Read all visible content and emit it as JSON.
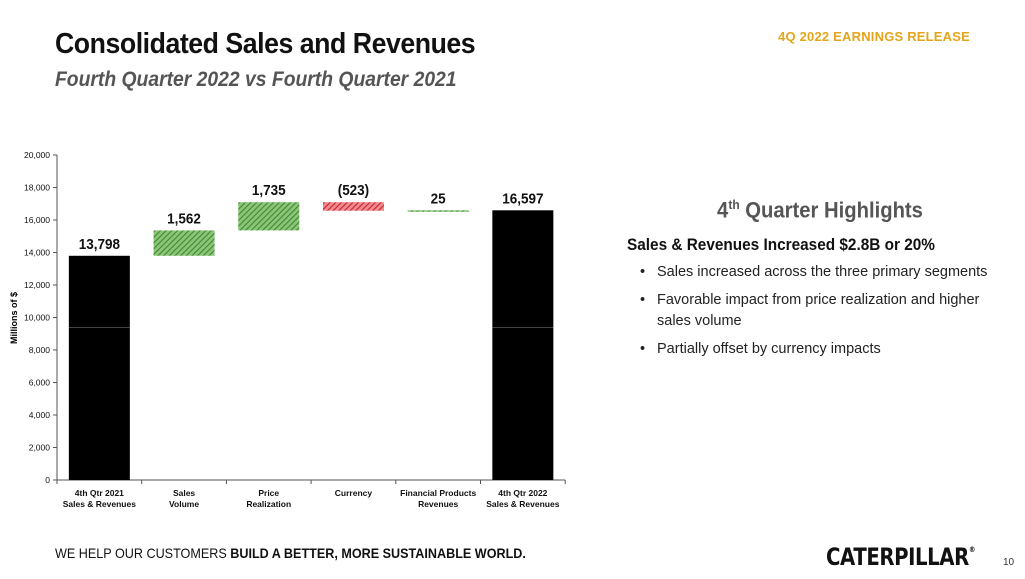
{
  "header": {
    "release": "4Q 2022 EARNINGS RELEASE",
    "title": "Consolidated Sales and Revenues",
    "subtitle": "Fourth Quarter 2022 vs Fourth Quarter 2021"
  },
  "chart_data": {
    "type": "bar",
    "subtype": "waterfall",
    "title": "",
    "xlabel": "",
    "ylabel": "Millions of $",
    "ylim": [
      0,
      20000
    ],
    "yticks": [
      0,
      2000,
      4000,
      6000,
      8000,
      10000,
      12000,
      14000,
      16000,
      18000,
      20000
    ],
    "ytick_labels": [
      "0",
      "2,000",
      "4,000",
      "6,000",
      "8,000",
      "10,000",
      "12,000",
      "14,000",
      "16,000",
      "18,000",
      "20,000"
    ],
    "grid": false,
    "categories": [
      [
        "4th Qtr 2021",
        "Sales & Revenues"
      ],
      [
        "Sales",
        "Volume"
      ],
      [
        "Price",
        "Realization"
      ],
      [
        "Currency"
      ],
      [
        "Financial Products",
        "Revenues"
      ],
      [
        "4th Qtr 2022",
        "Sales & Revenues"
      ]
    ],
    "bars": [
      {
        "kind": "total",
        "start": 0,
        "end": 13798,
        "label": "13,798"
      },
      {
        "kind": "increase",
        "start": 13798,
        "end": 15360,
        "label": "1,562"
      },
      {
        "kind": "increase",
        "start": 15360,
        "end": 17095,
        "label": "1,735"
      },
      {
        "kind": "decrease",
        "start": 17095,
        "end": 16572,
        "label": "(523)"
      },
      {
        "kind": "increase",
        "start": 16572,
        "end": 16597,
        "label": "25"
      },
      {
        "kind": "total",
        "start": 0,
        "end": 16597,
        "label": "16,597"
      }
    ],
    "colors": {
      "total": "#000000",
      "increase": "#4a9a3a",
      "decrease": "#d0313c"
    }
  },
  "highlights": {
    "title_prefix": "4",
    "title_sup": "th",
    "title_suffix": " Quarter Highlights",
    "subheading": "Sales & Revenues Increased $2.8B or 20%",
    "bullets": [
      "Sales increased across the three primary segments",
      "Favorable impact from price realization and higher sales volume",
      "Partially offset by currency impacts"
    ]
  },
  "footer": {
    "tagline_plain": "WE HELP OUR CUSTOMERS ",
    "tagline_bold": "BUILD A BETTER, MORE SUSTAINABLE WORLD.",
    "logo": "CATERPILLAR",
    "logo_mark": "®",
    "page_number": "10"
  }
}
